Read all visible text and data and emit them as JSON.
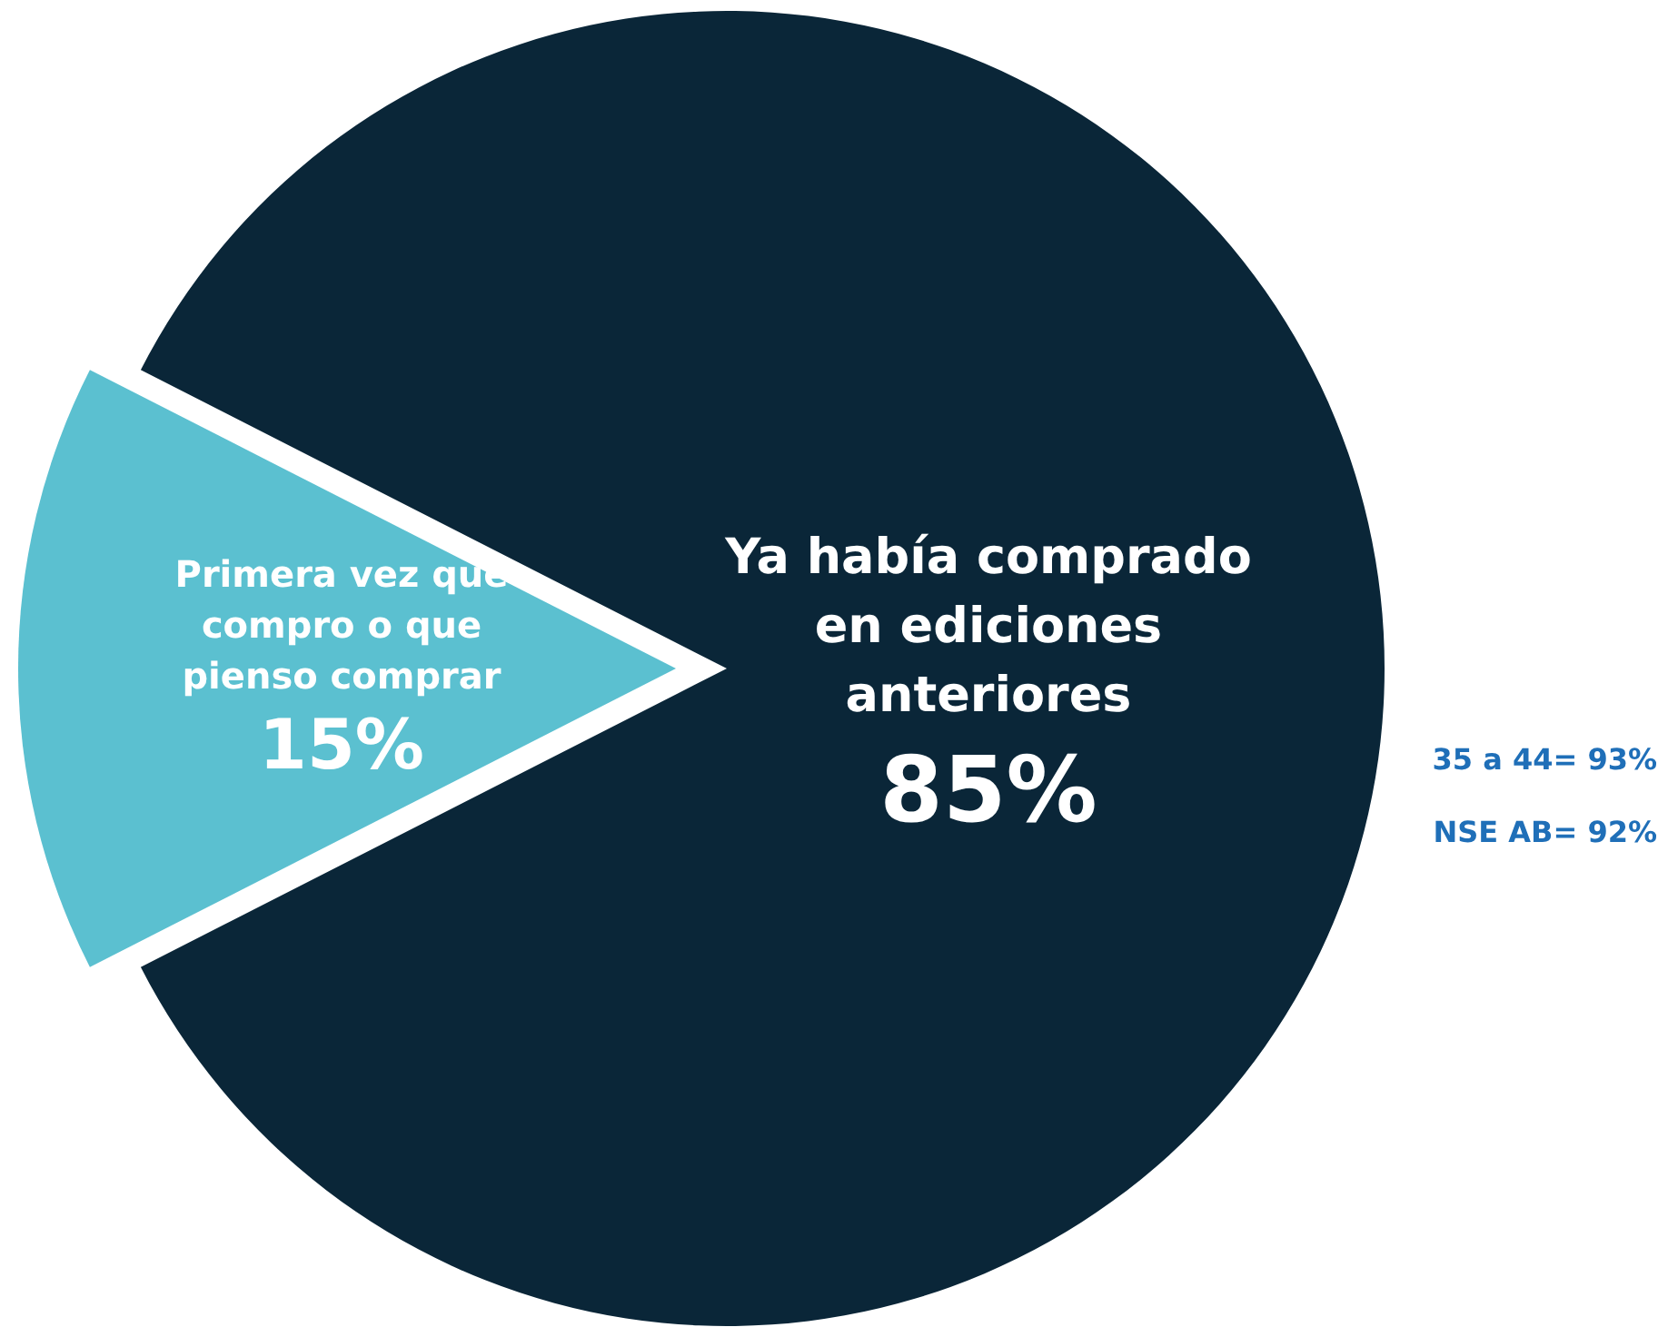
{
  "chart_data": {
    "type": "pie",
    "categories": [
      "Primera vez que compro o que pienso comprar",
      "Ya había comprado en ediciones anteriores"
    ],
    "values": [
      15,
      85
    ],
    "colors": [
      "#5bc0d0",
      "#0a2638"
    ],
    "annotations": [
      "35 a 44= 93%",
      "NSE AB= 92%"
    ],
    "legend": false,
    "value_labels": [
      "15%",
      "85%"
    ]
  }
}
